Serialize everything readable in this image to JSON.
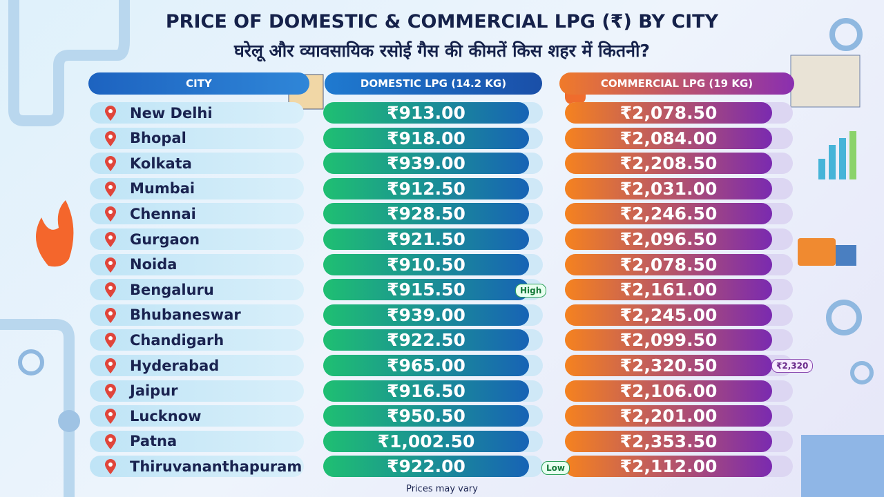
{
  "header": {
    "title": "PRICE OF DOMESTIC & COMMERCIAL LPG (₹) BY CITY",
    "subtitle": "घरेलू और व्यावसायिक रसोई गैस की कीमतें किस शहर में कितनी?"
  },
  "table": {
    "columns": [
      "CITY",
      "DOMESTIC LPG (14.2 KG)",
      "COMMERCIAL LPG (19 KG)"
    ],
    "rows": [
      [
        "New Delhi",
        "₹913.00",
        "₹2,078.50"
      ],
      [
        "Bhopal",
        "₹918.00",
        "₹2,084.00"
      ],
      [
        "Kolkata",
        "₹939.00",
        "₹2,208.50"
      ],
      [
        "Mumbai",
        "₹912.50",
        "₹2,031.00"
      ],
      [
        "Chennai",
        "₹928.50",
        "₹2,246.50"
      ],
      [
        "Gurgaon",
        "₹921.50",
        "₹2,096.50"
      ],
      [
        "Noida",
        "₹910.50",
        "₹2,078.50"
      ],
      [
        "Bengaluru",
        "₹915.50",
        "₹2,161.00"
      ],
      [
        "Bhubaneswar",
        "₹939.00",
        "₹2,245.00"
      ],
      [
        "Chandigarh",
        "₹922.50",
        "₹2,099.50"
      ],
      [
        "Hyderabad",
        "₹965.00",
        "₹2,320.50"
      ],
      [
        "Jaipur",
        "₹916.50",
        "₹2,106.00"
      ],
      [
        "Lucknow",
        "₹950.50",
        "₹2,201.00"
      ],
      [
        "Patna",
        "₹1,002.50",
        "₹2,353.50"
      ],
      [
        "Thiruvananthapuram",
        "₹922.00",
        "₹2,112.00"
      ]
    ]
  },
  "badges": {
    "high": "High",
    "low": "Low",
    "commercial": "₹2,320"
  },
  "footer": "Prices may vary"
}
